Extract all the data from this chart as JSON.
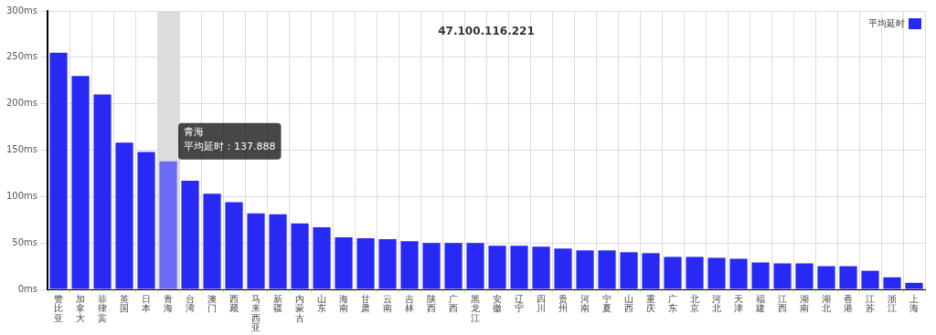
{
  "chart_data": {
    "type": "bar",
    "title": "47.100.116.221",
    "categories": [
      "赞比亚",
      "加拿大",
      "菲律宾",
      "英国",
      "日本",
      "青海",
      "台湾",
      "澳门",
      "西藏",
      "马来西亚",
      "新疆",
      "内蒙古",
      "山东",
      "海南",
      "甘肃",
      "云南",
      "吉林",
      "陕西",
      "广西",
      "黑龙江",
      "安徽",
      "辽宁",
      "四川",
      "贵州",
      "河南",
      "宁夏",
      "山西",
      "重庆",
      "广东",
      "北京",
      "河北",
      "天津",
      "福建",
      "江西",
      "湖南",
      "湖北",
      "香港",
      "江苏",
      "浙江",
      "上海"
    ],
    "series": [
      {
        "name": "平均延时",
        "color": "#2929f5",
        "colors": [
          "#2929f5",
          "#2929f5",
          "#2929f5",
          "#2929f5",
          "#2929f5",
          "#6b6bf5",
          "#2929f5",
          "#2929f5",
          "#2929f5",
          "#2929f5",
          "#2929f5",
          "#2929f5",
          "#2929f5",
          "#2929f5",
          "#2929f5",
          "#2929f5",
          "#2929f5",
          "#2929f5",
          "#2929f5",
          "#2929f5",
          "#2929f5",
          "#2929f5",
          "#2929f5",
          "#2929f5",
          "#2929f5",
          "#2929f5",
          "#2929f5",
          "#2929f5",
          "#2929f5",
          "#2929f5",
          "#2929f5",
          "#2929f5",
          "#2929f5",
          "#2929f5",
          "#2929f5",
          "#2929f5",
          "#2929f5",
          "#2929f5",
          "#2929f5",
          "#2929f5"
        ],
        "values": [
          255,
          230,
          210,
          158,
          148,
          137.888,
          117,
          103,
          94,
          82,
          81,
          71,
          67,
          56,
          55,
          54,
          52,
          50,
          50,
          50,
          47,
          47,
          46,
          44,
          42,
          42,
          40,
          39,
          35,
          35,
          34,
          33,
          29,
          28,
          28,
          25,
          25,
          20,
          13,
          7
        ]
      }
    ],
    "ylim": [
      0,
      300
    ],
    "yticks": [
      {
        "value": 0,
        "label": "0ms"
      },
      {
        "value": 50,
        "label": "50ms"
      },
      {
        "value": 100,
        "label": "100ms"
      },
      {
        "value": 150,
        "label": "150ms"
      },
      {
        "value": 200,
        "label": "200ms"
      },
      {
        "value": 250,
        "label": "250ms"
      },
      {
        "value": 300,
        "label": "300ms"
      }
    ],
    "grid": true,
    "legend": "top right",
    "bands": [
      {
        "axis": "x",
        "from": "青海",
        "to": "青海",
        "color": "#dddddd"
      }
    ],
    "annotations": [
      {
        "text": "青海",
        "x": "青海",
        "y": 137.888
      },
      {
        "text": "平均延时：137.888",
        "x": "青海",
        "y": 137.888
      }
    ]
  }
}
